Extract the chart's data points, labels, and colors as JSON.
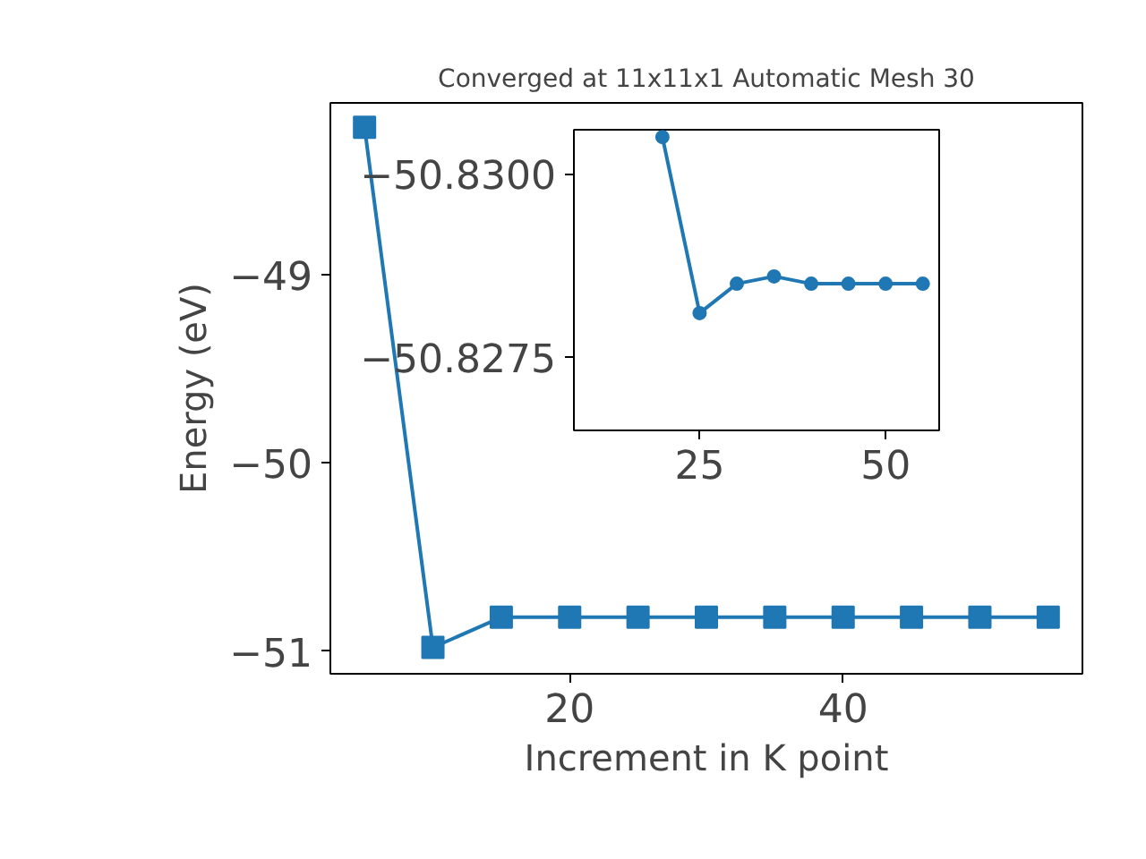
{
  "chart_data": [
    {
      "type": "line",
      "title": "Converged at 11x11x1 Automatic Mesh 30",
      "xlabel": "Increment in K point",
      "ylabel": "Energy (eV)",
      "x": [
        5,
        10,
        15,
        20,
        25,
        30,
        35,
        40,
        45,
        50,
        55
      ],
      "series": [
        {
          "color": "#1f77b4",
          "values": [
            -48.22,
            -50.98,
            -50.82,
            -50.82,
            -50.82,
            -50.82,
            -50.82,
            -50.82,
            -50.82,
            -50.82,
            -50.82
          ]
        }
      ],
      "xlim": [
        2.5,
        57.5
      ],
      "ylim": [
        -51.12,
        -48.09
      ],
      "xticks": [
        20,
        40
      ],
      "yticks": [
        {
          "value": -51,
          "label": "−51"
        },
        {
          "value": -50,
          "label": "−50"
        },
        {
          "value": -49,
          "label": "−49"
        }
      ],
      "grid": false,
      "marker": "square",
      "line_style": "solid"
    },
    {
      "type": "line",
      "x": [
        20,
        25,
        30,
        35,
        40,
        45,
        50,
        55
      ],
      "series": [
        {
          "color": "#1f77b4",
          "values": [
            -50.8305,
            -50.8281,
            -50.8285,
            -50.8286,
            -50.8285,
            -50.8285,
            -50.8285,
            -50.8285
          ]
        }
      ],
      "xlim": [
        8.1,
        57.2
      ],
      "ylim": [
        -50.8265,
        -50.8306
      ],
      "xticks": [
        25,
        50
      ],
      "yticks": [
        {
          "value": -50.8275,
          "label": "−50.8275"
        },
        {
          "value": -50.83,
          "label": "−50.8300"
        }
      ],
      "grid": false,
      "marker": "circle",
      "line_style": "solid"
    }
  ]
}
